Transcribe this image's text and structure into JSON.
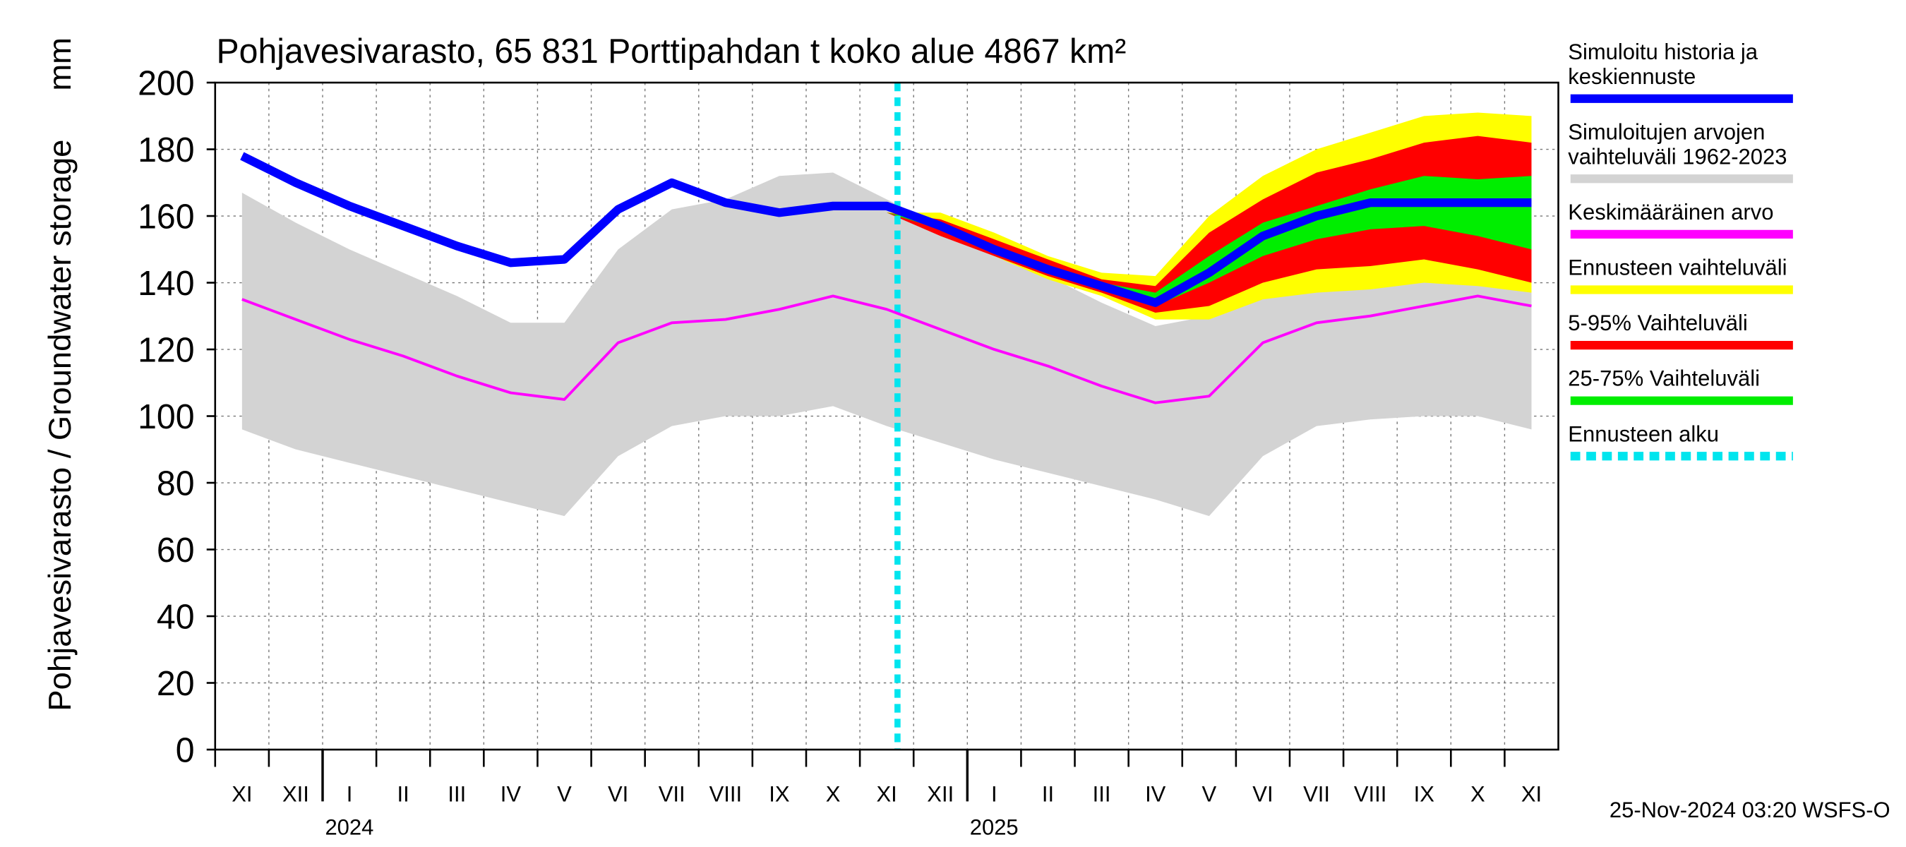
{
  "chart_data": {
    "type": "band-line",
    "title": "Pohjavesivarasto, 65 831 Porttipahdan t koko alue 4867 km²",
    "ylabel": "Pohjavesivarasto / Groundwater storage",
    "yunit": "mm",
    "footer": "25-Nov-2024 03:20 WSFS-O",
    "categories": [
      "XI",
      "XII",
      "I",
      "II",
      "III",
      "IV",
      "V",
      "VI",
      "VII",
      "VIII",
      "IX",
      "X",
      "XI",
      "XII",
      "I",
      "II",
      "III",
      "IV",
      "V",
      "VI",
      "VII",
      "VIII",
      "IX",
      "X",
      "XI"
    ],
    "years": [
      "2024",
      "2025"
    ],
    "ylim": [
      0,
      200
    ],
    "yticks": [
      0,
      20,
      40,
      60,
      80,
      100,
      120,
      140,
      160,
      180,
      200
    ],
    "grid": true,
    "series": [
      {
        "name": "Simuloitu historia ja\nkeskiennuste",
        "kind": "line",
        "color": "#0000ff",
        "values": [
          178,
          170,
          163,
          157,
          151,
          146,
          147,
          162,
          170,
          164,
          161,
          163,
          163,
          157,
          150,
          144,
          139,
          134,
          143,
          154,
          160,
          164,
          164,
          164,
          164
        ]
      },
      {
        "name": "Simuloitujen arvojen\nvaihteluväli 1962-2023",
        "kind": "band",
        "color": "#d3d3d3",
        "lower": [
          96,
          90,
          86,
          82,
          78,
          74,
          70,
          88,
          97,
          100,
          100,
          103,
          97,
          92,
          87,
          83,
          79,
          75,
          70,
          88,
          97,
          99,
          100,
          100,
          96
        ],
        "upper": [
          167,
          158,
          150,
          143,
          136,
          128,
          128,
          150,
          162,
          165,
          172,
          173,
          165,
          157,
          149,
          142,
          134,
          127,
          130,
          150,
          162,
          165,
          173,
          172,
          163
        ]
      },
      {
        "name": "Keskimääräinen arvo",
        "kind": "line",
        "color": "#ff00ff",
        "values": [
          135,
          129,
          123,
          118,
          112,
          107,
          105,
          122,
          128,
          129,
          132,
          136,
          132,
          126,
          120,
          115,
          109,
          104,
          106,
          122,
          128,
          130,
          133,
          136,
          133
        ]
      },
      {
        "name": "Ennusteen vaihteluväli",
        "kind": "band",
        "color": "#ffff00",
        "lower": [
          null,
          null,
          null,
          null,
          null,
          null,
          null,
          null,
          null,
          null,
          null,
          null,
          161,
          155,
          148,
          141,
          136,
          129,
          129,
          135,
          137,
          138,
          140,
          139,
          137
        ],
        "upper": [
          null,
          null,
          null,
          null,
          null,
          null,
          null,
          null,
          null,
          null,
          null,
          null,
          161,
          161,
          155,
          148,
          143,
          142,
          160,
          172,
          180,
          185,
          190,
          191,
          190
        ]
      },
      {
        "name": "5-95% Vaihteluväli",
        "kind": "band",
        "color": "#ff0000",
        "lower": [
          null,
          null,
          null,
          null,
          null,
          null,
          null,
          null,
          null,
          null,
          null,
          null,
          161,
          154,
          148,
          142,
          137,
          131,
          133,
          140,
          144,
          145,
          147,
          144,
          140
        ],
        "upper": [
          null,
          null,
          null,
          null,
          null,
          null,
          null,
          null,
          null,
          null,
          null,
          null,
          161,
          159,
          153,
          147,
          141,
          139,
          155,
          165,
          173,
          177,
          182,
          184,
          182
        ]
      },
      {
        "name": "25-75% Vaihteluväli",
        "kind": "band",
        "color": "#00ee00",
        "lower": [
          null,
          null,
          null,
          null,
          null,
          null,
          null,
          null,
          null,
          null,
          null,
          null,
          161,
          156,
          149,
          143,
          138,
          133,
          140,
          148,
          153,
          156,
          157,
          154,
          150
        ],
        "upper": [
          null,
          null,
          null,
          null,
          null,
          null,
          null,
          null,
          null,
          null,
          null,
          null,
          161,
          158,
          151,
          145,
          140,
          137,
          148,
          158,
          163,
          168,
          172,
          171,
          172
        ]
      }
    ],
    "forecast_start": {
      "name": "Ennusteen alku",
      "color": "#00e5ee"
    }
  }
}
